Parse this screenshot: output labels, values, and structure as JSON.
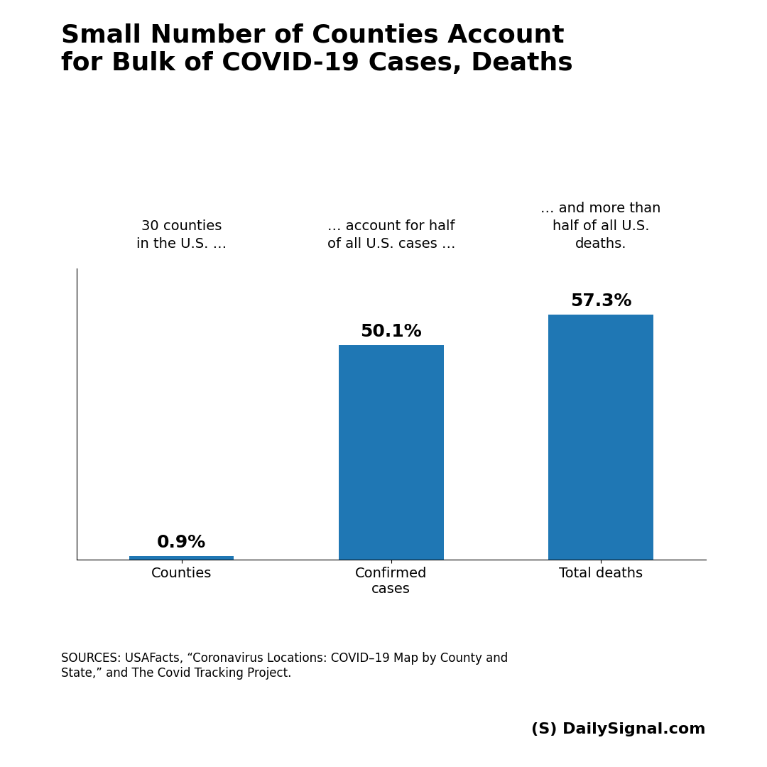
{
  "chart_data": {
    "type": "bar",
    "title": "Small Number of Counties Account\nfor Bulk of COVID-19 Cases, Deaths",
    "categories": [
      "Counties",
      "Confirmed\ncases",
      "Total deaths"
    ],
    "values": [
      0.9,
      50.1,
      57.3
    ],
    "value_labels": [
      "0.9%",
      "50.1%",
      "57.3%"
    ],
    "data_labels": true,
    "ylim": [
      0,
      68
    ],
    "tick_labels": "x",
    "grid": false,
    "annotations": [
      "30 counties\nin the U.S. …",
      "… account for half\nof all U.S. cases …",
      "… and more than\nhalf of all U.S.\ndeaths."
    ],
    "footnotes": [
      "SOURCES: USAFacts, “Coronavirus Locations: COVID–19 Map by County and\nState,” and The Covid Tracking Project.",
      "(S) DailySignal.com"
    ]
  }
}
